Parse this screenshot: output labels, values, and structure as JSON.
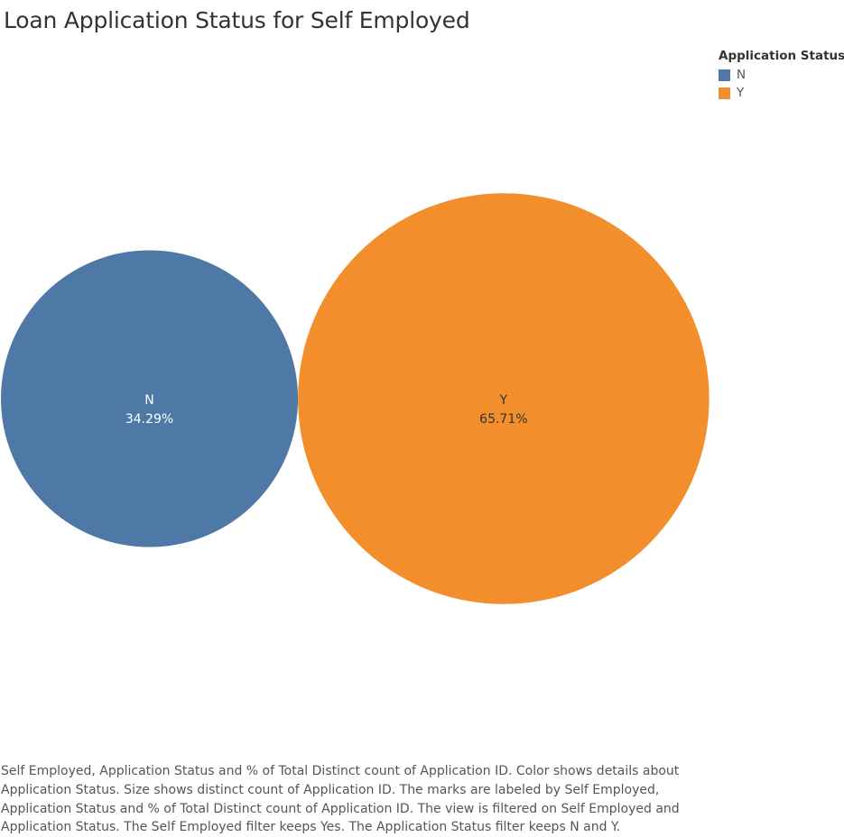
{
  "chart_data": {
    "type": "bubble",
    "title": "Loan Application Status for Self Employed",
    "legend": {
      "title": "Application Status",
      "placement": "top-right",
      "entries": [
        {
          "label": "N",
          "color": "#4e79a7"
        },
        {
          "label": "Y",
          "color": "#f28e2b"
        }
      ]
    },
    "bubbles": [
      {
        "category": "N",
        "value_label": "34.29%",
        "percent": 34.29,
        "color": "#4e79a7",
        "label_color": "#ffffff"
      },
      {
        "category": "Y",
        "value_label": "65.71%",
        "percent": 65.71,
        "color": "#f28e2b",
        "label_color": "#333333"
      }
    ]
  },
  "caption": "Self Employed, Application Status and % of Total Distinct count of Application ID.  Color shows details about Application Status.  Size shows distinct count of Application ID.  The marks are labeled by Self Employed, Application Status and % of Total Distinct count of Application ID. The view is filtered on Self Employed and Application Status. The Self Employed filter keeps Yes. The Application Status filter keeps N and Y."
}
